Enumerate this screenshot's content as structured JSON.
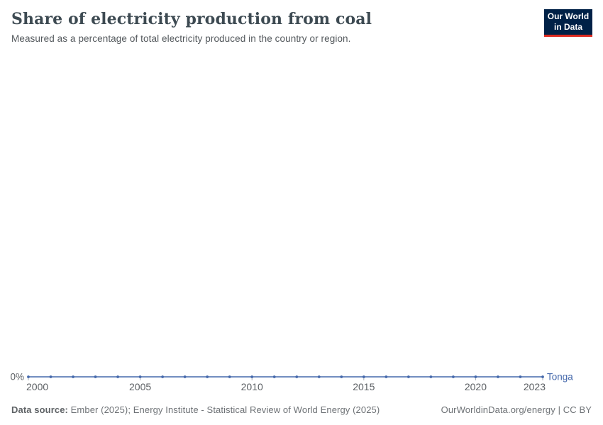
{
  "header": {
    "title": "Share of electricity production from coal",
    "subtitle": "Measured as a percentage of total electricity produced in the country or region.",
    "logo": {
      "line1": "Our World",
      "line2": "in Data",
      "bg_color": "#002147",
      "accent_color": "#dc2a20"
    }
  },
  "chart_data": {
    "type": "line",
    "title": "Share of electricity production from coal",
    "subtitle": "Measured as a percentage of total electricity produced in the country or region.",
    "x_range": [
      2000,
      2023
    ],
    "x_ticks": [
      2000,
      2005,
      2010,
      2015,
      2020,
      2023
    ],
    "y_ticks": [
      0
    ],
    "y_tick_labels": [
      "0%"
    ],
    "ylim": [
      0,
      100
    ],
    "grid": false,
    "legend_position": "end-of-line",
    "xlabel": "",
    "ylabel": "",
    "series": [
      {
        "name": "Tonga",
        "color": "#4468ab",
        "marker": "circle",
        "x": [
          2000,
          2001,
          2002,
          2003,
          2004,
          2005,
          2006,
          2007,
          2008,
          2009,
          2010,
          2011,
          2012,
          2013,
          2014,
          2015,
          2016,
          2017,
          2018,
          2019,
          2020,
          2021,
          2022,
          2023
        ],
        "values": [
          0,
          0,
          0,
          0,
          0,
          0,
          0,
          0,
          0,
          0,
          0,
          0,
          0,
          0,
          0,
          0,
          0,
          0,
          0,
          0,
          0,
          0,
          0,
          0
        ]
      }
    ],
    "axis_text_color": "#5b5f63",
    "tick_mark_color": "#a6adb5"
  },
  "footer": {
    "source_label": "Data source:",
    "source_text": " Ember (2025); Energy Institute - Statistical Review of World Energy (2025)",
    "right_text": "OurWorldinData.org/energy | CC BY"
  }
}
